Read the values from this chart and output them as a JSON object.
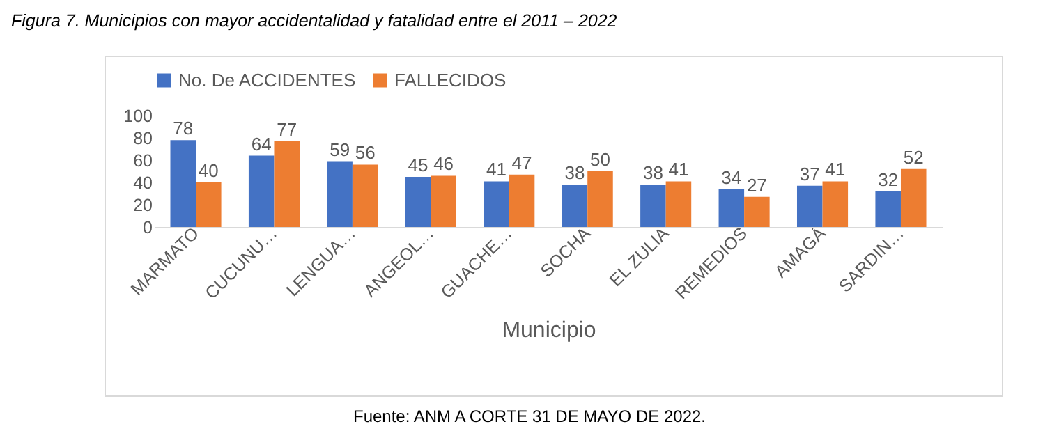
{
  "chart_data": {
    "type": "bar",
    "title": "Figura 7. Municipios con mayor accidentalidad y fatalidad entre el 2011 – 2022",
    "xlabel": "Municipio",
    "categories": [
      "MARMATO",
      "CUCUNU…",
      "LENGUA…",
      "ANGEOL…",
      "GUACHE…",
      "SOCHA",
      "EL ZULIA",
      "REMEDIOS",
      "AMAGÁ",
      "SARDIN…"
    ],
    "series": [
      {
        "name": "No. De ACCIDENTES",
        "color": "#4472c4",
        "values": [
          78,
          64,
          59,
          45,
          41,
          38,
          38,
          34,
          37,
          32
        ]
      },
      {
        "name": "FALLECIDOS",
        "color": "#ed7d31",
        "values": [
          40,
          77,
          56,
          46,
          47,
          50,
          41,
          27,
          41,
          52
        ]
      }
    ],
    "ylim": [
      0,
      100
    ],
    "yticks": [
      0,
      20,
      40,
      60,
      80,
      100
    ],
    "grid": false,
    "legend": "top",
    "data_labels": true,
    "annotations": [
      "Fuente: ANM A CORTE 31 DE MAYO DE 2022."
    ]
  }
}
